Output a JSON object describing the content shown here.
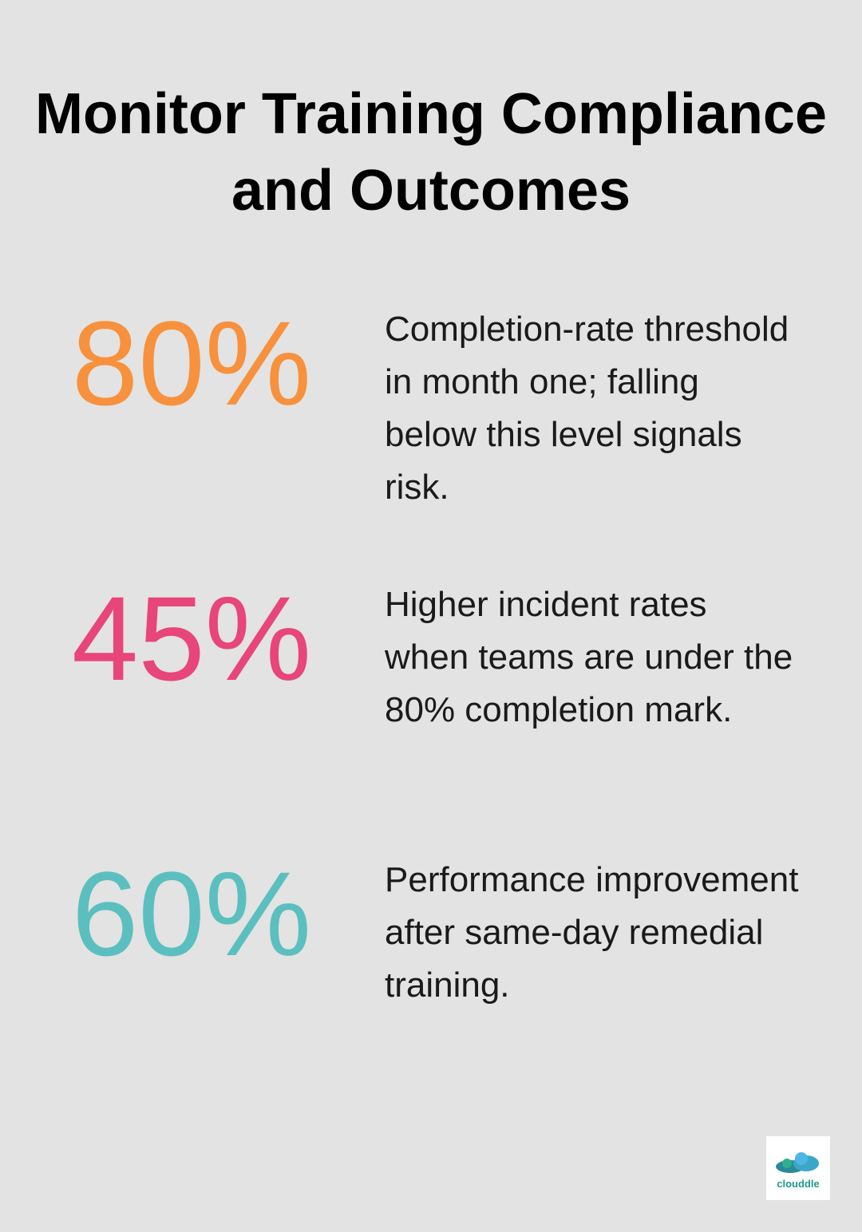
{
  "header": {
    "title": "Monitor Training Compliance and Outcomes"
  },
  "stats": [
    {
      "value": "80%",
      "color": "#f7913d",
      "text": "Completion-rate threshold in month one; falling below this level signals risk."
    },
    {
      "value": "45%",
      "color": "#e8457a",
      "text": "Higher incident rates when teams are under the 80% completion mark."
    },
    {
      "value": "60%",
      "color": "#5bbfbf",
      "text": "Performance improvement after same-day remedial training."
    }
  ],
  "logo": {
    "text": "clouddle"
  }
}
